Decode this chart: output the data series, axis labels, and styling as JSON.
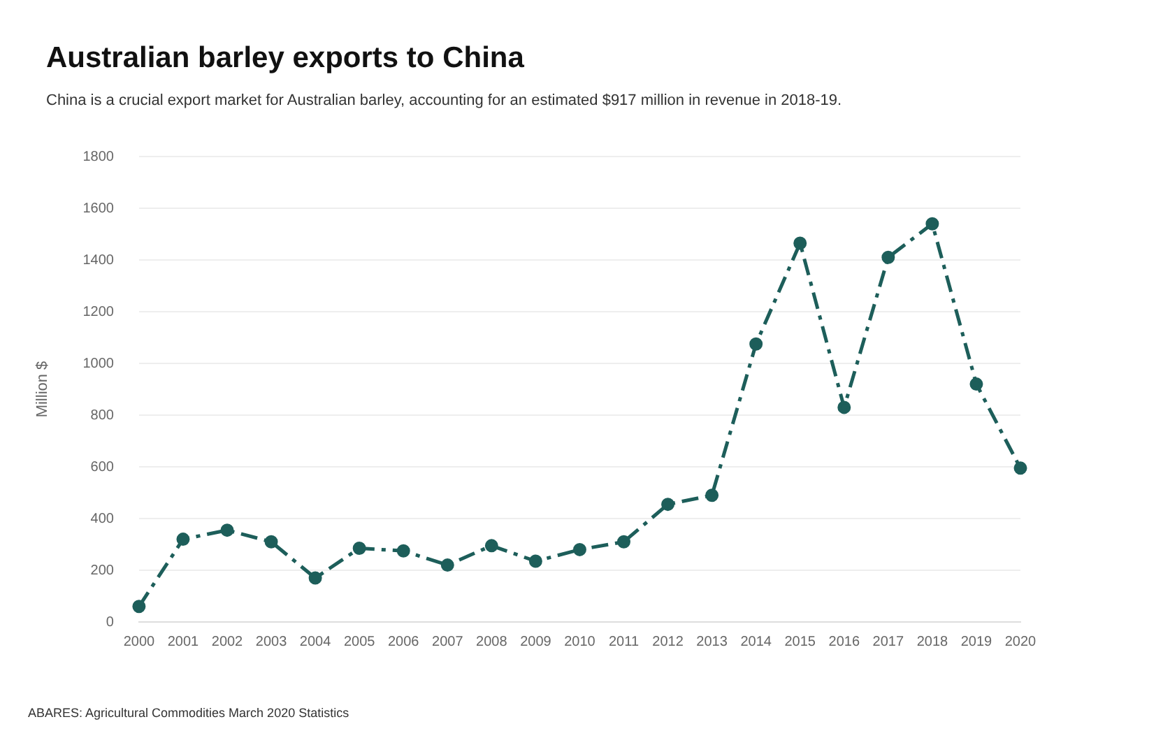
{
  "chart_data": {
    "type": "line",
    "title": "Australian barley exports to China",
    "subtitle": "China is a crucial export market for Australian barley, accounting for an estimated $917 million in revenue in 2018-19.",
    "ylabel": "Million $",
    "categories": [
      "2000",
      "2001",
      "2002",
      "2003",
      "2004",
      "2005",
      "2006",
      "2007",
      "2008",
      "2009",
      "2010",
      "2011",
      "2012",
      "2013",
      "2014",
      "2015",
      "2016",
      "2017",
      "2018",
      "2019",
      "2020"
    ],
    "series": [
      {
        "color": "#1d5e5a",
        "values": [
          60,
          320,
          355,
          310,
          170,
          285,
          275,
          220,
          295,
          235,
          280,
          310,
          455,
          490,
          1075,
          1465,
          830,
          1410,
          1540,
          920,
          595
        ]
      }
    ],
    "ylim": [
      0,
      1800
    ],
    "yticks": [
      0,
      200,
      400,
      600,
      800,
      1000,
      1200,
      1400,
      1600,
      1800
    ],
    "grid": "y",
    "legend": false,
    "marker": "circle",
    "line_style": "dashed",
    "annotations": [
      "ABARES: Agricultural Commodities March 2020 Statistics"
    ]
  }
}
